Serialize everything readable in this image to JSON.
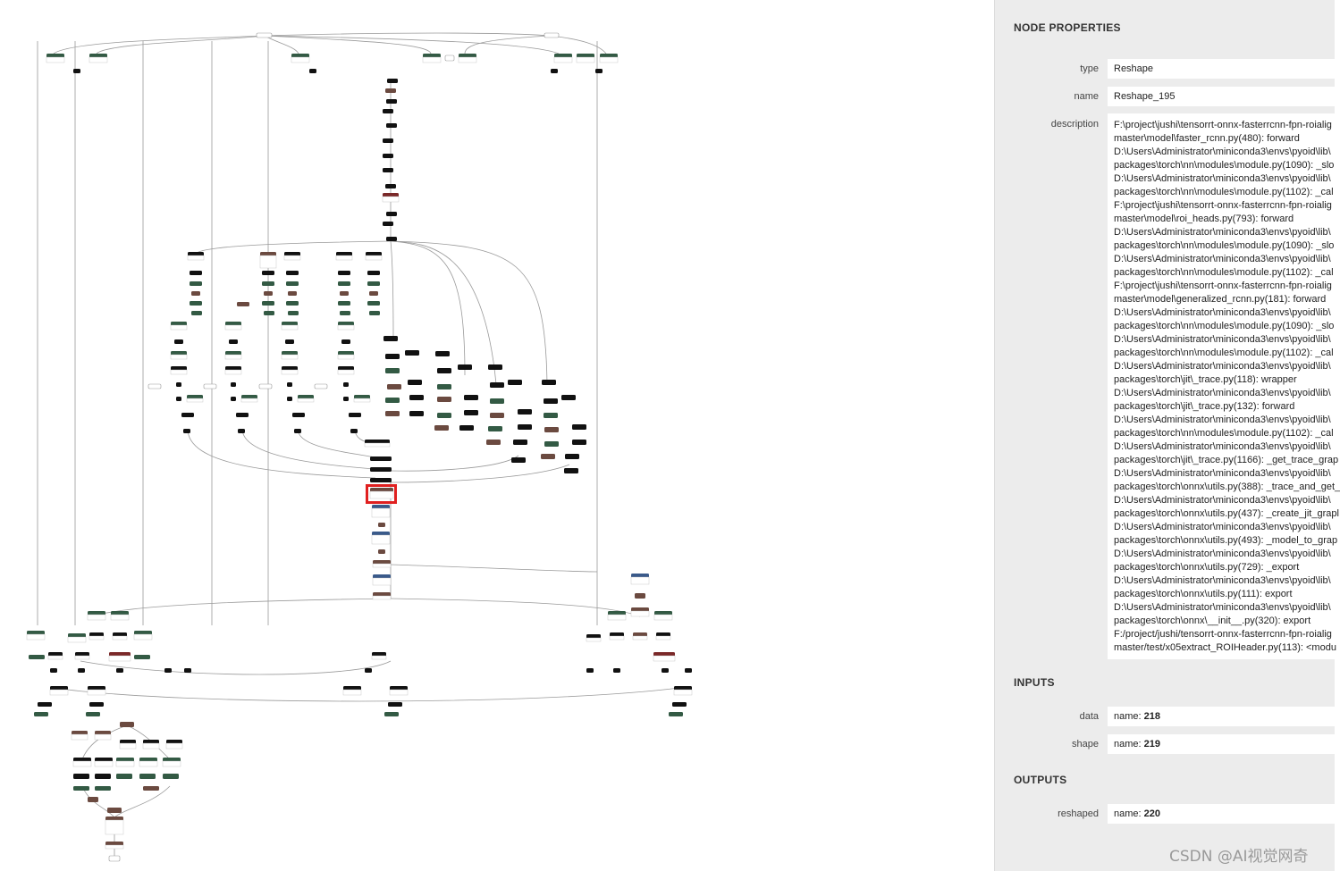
{
  "panel": {
    "title": "NODE PROPERTIES",
    "properties": [
      {
        "label": "type",
        "value": "Reshape"
      },
      {
        "label": "name",
        "value": "Reshape_195"
      }
    ],
    "description_label": "description",
    "description_lines": [
      "F:\\project\\jushi\\tensorrt-onnx-fasterrcnn-fpn-roialig",
      "master\\model\\faster_rcnn.py(480): forward",
      "D:\\Users\\Administrator\\miniconda3\\envs\\pyoid\\lib\\",
      "packages\\torch\\nn\\modules\\module.py(1090): _slo",
      "D:\\Users\\Administrator\\miniconda3\\envs\\pyoid\\lib\\",
      "packages\\torch\\nn\\modules\\module.py(1102): _cal",
      "F:\\project\\jushi\\tensorrt-onnx-fasterrcnn-fpn-roialig",
      "master\\model\\roi_heads.py(793): forward",
      "D:\\Users\\Administrator\\miniconda3\\envs\\pyoid\\lib\\",
      "packages\\torch\\nn\\modules\\module.py(1090): _slo",
      "D:\\Users\\Administrator\\miniconda3\\envs\\pyoid\\lib\\",
      "packages\\torch\\nn\\modules\\module.py(1102): _cal",
      "F:\\project\\jushi\\tensorrt-onnx-fasterrcnn-fpn-roialig",
      "master\\model\\generalized_rcnn.py(181): forward",
      "D:\\Users\\Administrator\\miniconda3\\envs\\pyoid\\lib\\",
      "packages\\torch\\nn\\modules\\module.py(1090): _slo",
      "D:\\Users\\Administrator\\miniconda3\\envs\\pyoid\\lib\\",
      "packages\\torch\\nn\\modules\\module.py(1102): _cal",
      "D:\\Users\\Administrator\\miniconda3\\envs\\pyoid\\lib\\",
      "packages\\torch\\jit\\_trace.py(118): wrapper",
      "D:\\Users\\Administrator\\miniconda3\\envs\\pyoid\\lib\\",
      "packages\\torch\\jit\\_trace.py(132): forward",
      "D:\\Users\\Administrator\\miniconda3\\envs\\pyoid\\lib\\",
      "packages\\torch\\nn\\modules\\module.py(1102): _cal",
      "D:\\Users\\Administrator\\miniconda3\\envs\\pyoid\\lib\\",
      "packages\\torch\\jit\\_trace.py(1166): _get_trace_grap",
      "D:\\Users\\Administrator\\miniconda3\\envs\\pyoid\\lib\\",
      "packages\\torch\\onnx\\utils.py(388): _trace_and_get_",
      "D:\\Users\\Administrator\\miniconda3\\envs\\pyoid\\lib\\",
      "packages\\torch\\onnx\\utils.py(437): _create_jit_grapl",
      "D:\\Users\\Administrator\\miniconda3\\envs\\pyoid\\lib\\",
      "packages\\torch\\onnx\\utils.py(493): _model_to_grap",
      "D:\\Users\\Administrator\\miniconda3\\envs\\pyoid\\lib\\",
      "packages\\torch\\onnx\\utils.py(729): _export",
      "D:\\Users\\Administrator\\miniconda3\\envs\\pyoid\\lib\\",
      "packages\\torch\\onnx\\utils.py(111): export",
      "D:\\Users\\Administrator\\miniconda3\\envs\\pyoid\\lib\\",
      "packages\\torch\\onnx\\__init__.py(320): export",
      "F:/project/jushi/tensorrt-onnx-fasterrcnn-fpn-roialig",
      "master/test/x05extract_ROIHeader.py(113): <modu"
    ],
    "inputs_title": "INPUTS",
    "inputs": [
      {
        "label": "data",
        "prefix": "name: ",
        "value": "218"
      },
      {
        "label": "shape",
        "prefix": "name: ",
        "value": "219"
      }
    ],
    "outputs_title": "OUTPUTS",
    "outputs": [
      {
        "label": "reshaped",
        "prefix": "name: ",
        "value": "220"
      }
    ]
  },
  "watermark": "CSDN @AI视觉网奇",
  "colors": {
    "node_black": "#111111",
    "node_green": "#335a44",
    "node_brown": "#6b4a40",
    "node_darkred": "#7a2828",
    "node_blue": "#3a5a8a",
    "edge": "#9a9a9a",
    "selection": "#e02020",
    "panel_bg": "#ececec"
  }
}
